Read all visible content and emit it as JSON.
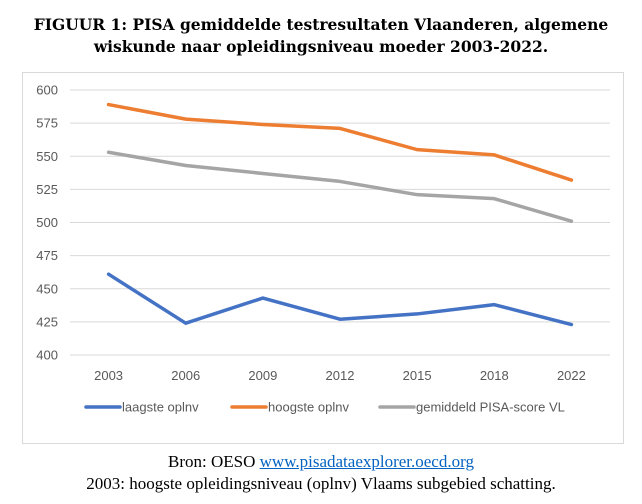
{
  "title_line1": "FIGUUR 1: PISA gemiddelde testresultaten Vlaanderen, algemene",
  "title_line2": "wiskunde naar opleidingsniveau moeder 2003-2022.",
  "footer": {
    "source_prefix": "Bron: OESO ",
    "source_link": "www.pisadataexplorer.oecd.org",
    "note": "2003: hoogste opleidingsniveau (oplnv) Vlaams subgebied schatting."
  },
  "chart_data": {
    "type": "line",
    "categories": [
      "2003",
      "2006",
      "2009",
      "2012",
      "2015",
      "2018",
      "2022"
    ],
    "ylim": [
      400,
      600
    ],
    "yticks": [
      400,
      425,
      450,
      475,
      500,
      525,
      550,
      575,
      600
    ],
    "grid": true,
    "legend_placement": "bottom",
    "series": [
      {
        "name": "laagste oplnv",
        "color": "#4472c4",
        "values": [
          461,
          424,
          443,
          427,
          431,
          438,
          423
        ]
      },
      {
        "name": "hoogste oplnv",
        "color": "#ed7d31",
        "values": [
          589,
          578,
          574,
          571,
          555,
          551,
          532
        ]
      },
      {
        "name": "gemiddeld PISA-score VL",
        "color": "#a5a5a5",
        "values": [
          553,
          543,
          537,
          531,
          521,
          518,
          501
        ]
      }
    ]
  }
}
